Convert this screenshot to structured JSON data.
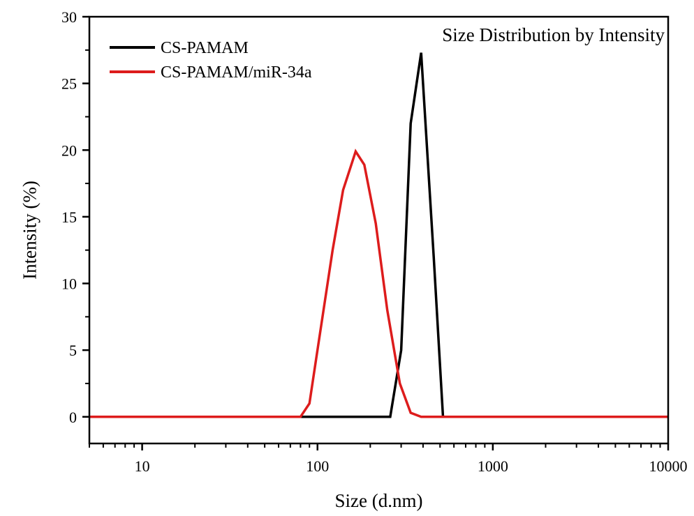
{
  "chart_data": {
    "type": "line",
    "annotation": "Size Distribution by Intensity",
    "xlabel": "Size (d.nm)",
    "ylabel": "Intensity (%)",
    "xscale": "log",
    "xlim": [
      5,
      10000
    ],
    "ylim": [
      -2,
      30
    ],
    "xticks": [
      10,
      100,
      1000,
      10000
    ],
    "xtick_labels": [
      "10",
      "100",
      "1000",
      "10000"
    ],
    "yticks": [
      0,
      5,
      10,
      15,
      20,
      25,
      30
    ],
    "ytick_labels": [
      "0",
      "5",
      "10",
      "15",
      "20",
      "25",
      "30"
    ],
    "legend_position": "top-left",
    "series": [
      {
        "name": "CS-PAMAM",
        "color": "#000000",
        "points": [
          [
            5,
            0
          ],
          [
            260,
            0
          ],
          [
            300,
            5
          ],
          [
            340,
            22
          ],
          [
            390,
            27.3
          ],
          [
            460,
            12
          ],
          [
            520,
            0
          ],
          [
            10000,
            0
          ]
        ]
      },
      {
        "name": "CS-PAMAM/miR-34a",
        "color": "#dd1c1c",
        "points": [
          [
            5,
            0
          ],
          [
            80,
            0
          ],
          [
            90,
            1
          ],
          [
            100,
            5
          ],
          [
            122,
            12.5
          ],
          [
            140,
            17
          ],
          [
            165,
            19.9
          ],
          [
            185,
            18.9
          ],
          [
            215,
            14.5
          ],
          [
            250,
            8
          ],
          [
            295,
            2.5
          ],
          [
            340,
            0.3
          ],
          [
            390,
            0
          ],
          [
            10000,
            0
          ]
        ]
      }
    ]
  }
}
